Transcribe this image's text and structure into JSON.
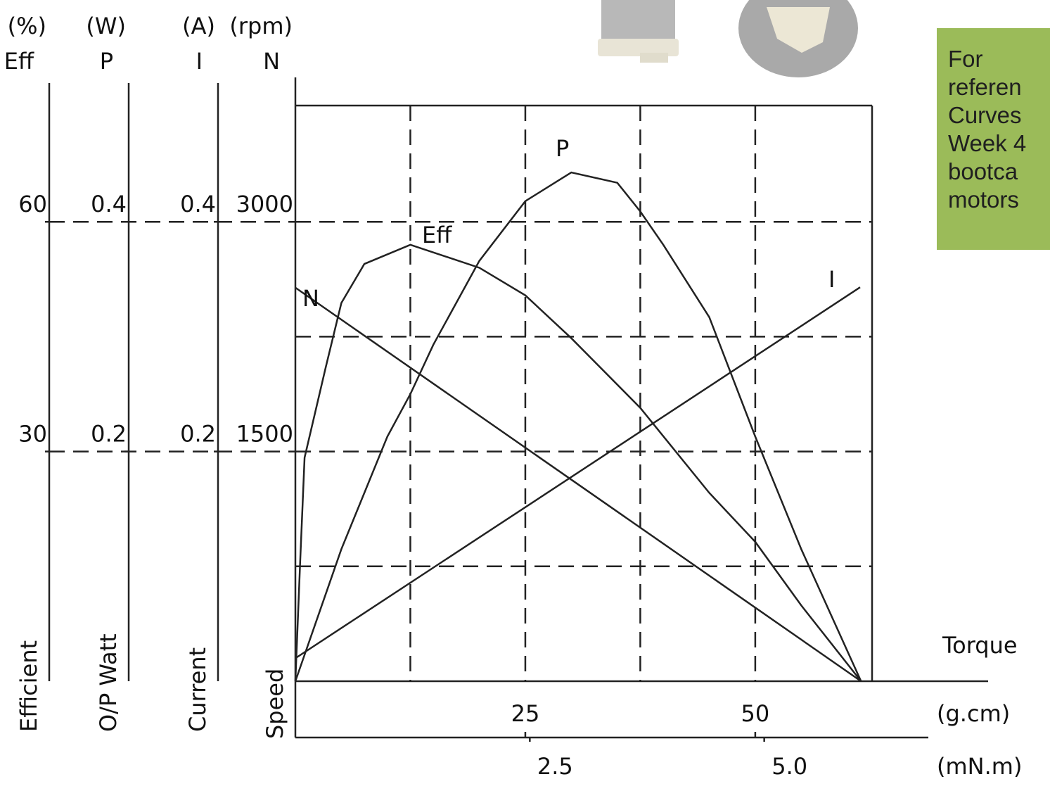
{
  "chart_data": {
    "type": "line",
    "x_title": "Torque",
    "x_unit": "(g.cm)",
    "x2_unit": "(mN.m)",
    "xlim": [
      0,
      62.7
    ],
    "xticks": [
      25,
      50
    ],
    "xgrid": [
      12.5,
      25,
      37.5,
      50
    ],
    "x2lim": [
      0,
      6.15
    ],
    "x2ticks": [
      2.5,
      5.0
    ],
    "x2tick_labels": [
      "2.5",
      "5.0"
    ],
    "y_axes": [
      {
        "unit": "(%)",
        "symbol": "Eff",
        "title": "Efficient",
        "ylim": [
          0,
          75
        ],
        "yticks": [
          30,
          60
        ]
      },
      {
        "unit": "(W)",
        "symbol": "P",
        "title": "O/P Watt",
        "ylim": [
          0,
          0.5
        ],
        "yticks": [
          0.2,
          0.4
        ]
      },
      {
        "unit": "(A)",
        "symbol": "I",
        "title": "Current",
        "ylim": [
          0,
          0.5
        ],
        "yticks": [
          0.2,
          0.4
        ]
      },
      {
        "unit": "(rpm)",
        "symbol": "N",
        "title": "Speed",
        "ylim": [
          0,
          3750
        ],
        "yticks": [
          1500,
          3000
        ]
      }
    ],
    "ygrid": [
      750,
      1500,
      2250,
      3000
    ],
    "color": "#222222",
    "series": [
      {
        "name": "Eff",
        "axis": 0,
        "x": [
          0,
          0.5,
          1,
          3.3,
          5,
          7.5,
          12.5,
          20,
          25,
          30,
          37.5,
          45,
          50,
          55,
          61.5
        ],
        "values": [
          0,
          15,
          29.2,
          41,
          49.4,
          54.5,
          57,
          54,
          50.4,
          44.8,
          35.7,
          24.6,
          18.2,
          9.9,
          0
        ]
      },
      {
        "name": "P",
        "axis": 1,
        "x": [
          0,
          5,
          10,
          12.5,
          15,
          20,
          25,
          30,
          35,
          37.5,
          40,
          45,
          50,
          55,
          61.5
        ],
        "values": [
          0,
          0.115,
          0.213,
          0.25,
          0.293,
          0.366,
          0.418,
          0.443,
          0.434,
          0.409,
          0.38,
          0.317,
          0.213,
          0.115,
          0
        ]
      },
      {
        "name": "I",
        "axis": 2,
        "x": [
          0,
          61.4
        ],
        "values": [
          0.02,
          0.343
        ]
      },
      {
        "name": "N",
        "axis": 3,
        "x": [
          0,
          61.5
        ],
        "values": [
          2570,
          0
        ]
      }
    ]
  },
  "note_box": {
    "lines": [
      "For",
      "referen",
      "Curves",
      "Week 4",
      "bootca",
      "motors"
    ]
  }
}
